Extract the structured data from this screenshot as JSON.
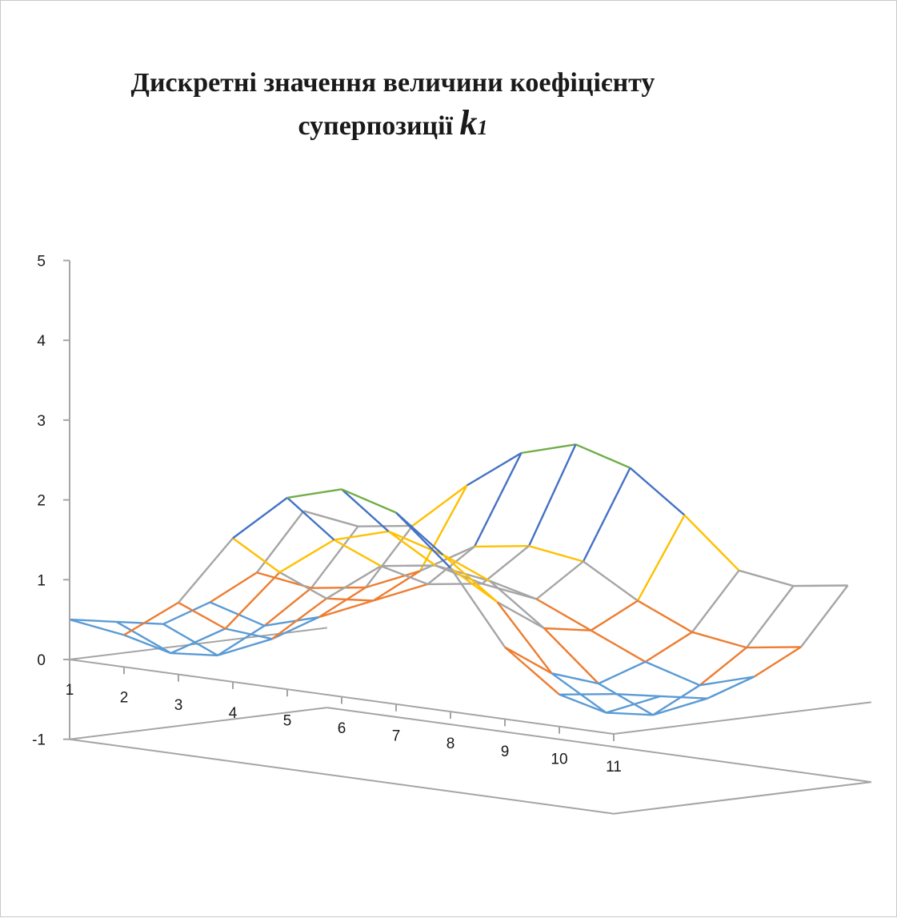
{
  "title": {
    "line1": "Дискретні значення величини коефіцієнту",
    "line2_prefix": "суперпозиції ",
    "symbol": "k",
    "subscript": "1"
  },
  "chart_data": {
    "type": "surface",
    "x_categories": [
      "1",
      "2",
      "3",
      "4",
      "5",
      "6",
      "7",
      "8",
      "9",
      "10",
      "11"
    ],
    "depth_rows": 6,
    "z_ticks": [
      "-1",
      "0",
      "1",
      "2",
      "3",
      "4",
      "5"
    ],
    "zlim": [
      -1,
      5
    ],
    "band_colors": [
      {
        "range": [
          0,
          0.5
        ],
        "color": "#5b9bd5"
      },
      {
        "range": [
          0.5,
          1
        ],
        "color": "#ed7d31"
      },
      {
        "range": [
          1,
          1.5
        ],
        "color": "#a5a5a5"
      },
      {
        "range": [
          1.5,
          2
        ],
        "color": "#ffc000"
      },
      {
        "range": [
          2,
          2.5
        ],
        "color": "#4472c4"
      },
      {
        "range": [
          2.5,
          3
        ],
        "color": "#70ad47"
      }
    ],
    "rows": [
      [
        0.5,
        0.4,
        0.9,
        1.8,
        2.4,
        2.6,
        2.4,
        1.8,
        0.9,
        0.4,
        0.5
      ],
      [
        0.4,
        0.1,
        0.5,
        1.3,
        1.8,
        2.0,
        1.8,
        1.3,
        0.5,
        0.1,
        0.4
      ],
      [
        0.3,
        0.0,
        0.3,
        0.9,
        1.4,
        1.5,
        1.4,
        0.9,
        0.3,
        0.0,
        0.3
      ],
      [
        0.5,
        0.3,
        0.5,
        0.8,
        1.1,
        1.2,
        1.1,
        0.8,
        0.5,
        0.3,
        0.5
      ],
      [
        0.8,
        0.7,
        0.8,
        1.1,
        1.5,
        1.6,
        1.5,
        1.1,
        0.8,
        0.7,
        0.8
      ],
      [
        1.5,
        1.4,
        1.5,
        2.1,
        2.6,
        2.8,
        2.6,
        2.1,
        1.5,
        1.4,
        1.5
      ]
    ],
    "axis_color": "#a5a5a5"
  }
}
